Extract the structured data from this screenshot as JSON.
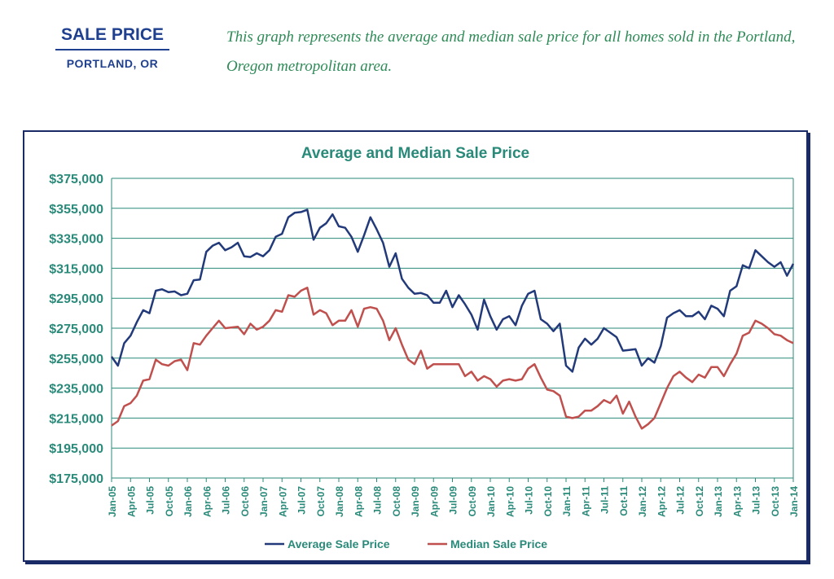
{
  "header": {
    "title": "SALE PRICE",
    "subtitle": "PORTLAND, OR",
    "intro": "This graph represents the average and median sale price for all homes sold in the Portland, Oregon metropolitan area."
  },
  "colors": {
    "heading": "#1f3f8f",
    "intro": "#2e8b57",
    "title": "#2a8a7a",
    "axis_text": "#2a8a7a",
    "grid": "#2a8a7a",
    "average": "#223a7a",
    "median": "#c0504d"
  },
  "chart_data": {
    "type": "line",
    "title": "Average and Median Sale Price",
    "xlabel": "",
    "ylabel": "",
    "ylim": [
      175000,
      375000
    ],
    "yticks": [
      "$375,000",
      "$355,000",
      "$335,000",
      "$315,000",
      "$295,000",
      "$275,000",
      "$255,000",
      "$235,000",
      "$215,000",
      "$195,000",
      "$175,000"
    ],
    "ytick_values": [
      375000,
      355000,
      335000,
      315000,
      295000,
      275000,
      255000,
      235000,
      215000,
      195000,
      175000
    ],
    "xticks": [
      "Jan-05",
      "Apr-05",
      "Jul-05",
      "Oct-05",
      "Jan-06",
      "Apr-06",
      "Jul-06",
      "Oct-06",
      "Jan-07",
      "Apr-07",
      "Jul-07",
      "Oct-07",
      "Jan-08",
      "Apr-08",
      "Jul-08",
      "Oct-08",
      "Jan-09",
      "Apr-09",
      "Jul-09",
      "Oct-09",
      "Jan-10",
      "Apr-10",
      "Jul-10",
      "Oct-10",
      "Jan-11",
      "Apr-11",
      "Jul-11",
      "Oct-11",
      "Jan-12",
      "Apr-12",
      "Jul-12",
      "Oct-12",
      "Jan-13",
      "Apr-13",
      "Jul-13",
      "Oct-13",
      "Jan-14"
    ],
    "x_start": "Jan-05",
    "x_interval": "monthly",
    "grid": "horizontal",
    "legend_position": "bottom",
    "series": [
      {
        "name": "Average Sale Price",
        "color": "#223a7a",
        "values": [
          256000,
          250000,
          265000,
          270000,
          279000,
          287000,
          285000,
          300000,
          301000,
          299000,
          299500,
          297000,
          298000,
          307000,
          307500,
          326000,
          330000,
          332000,
          327000,
          329000,
          332000,
          323000,
          322500,
          325000,
          323000,
          327000,
          336000,
          338000,
          349000,
          352000,
          352500,
          354000,
          334000,
          342000,
          345000,
          351000,
          343000,
          342000,
          336000,
          326000,
          337000,
          349000,
          341000,
          332000,
          316000,
          325000,
          308000,
          302000,
          298000,
          298500,
          297000,
          292000,
          292000,
          300000,
          289000,
          297000,
          291000,
          284000,
          274000,
          294000,
          283000,
          274000,
          281000,
          283000,
          277000,
          290000,
          298000,
          300000,
          281000,
          278000,
          273000,
          278000,
          250000,
          246000,
          262000,
          268000,
          264000,
          268000,
          275000,
          272000,
          269000,
          260000,
          260500,
          261000,
          250000,
          255000,
          252000,
          263000,
          282000,
          285000,
          287000,
          283000,
          283000,
          286000,
          281000,
          290000,
          288000,
          283000,
          300000,
          303000,
          317000,
          315000,
          327000,
          323000,
          319000,
          316000,
          319000,
          310000,
          318000
        ]
      },
      {
        "name": "Median Sale Price",
        "color": "#c0504d",
        "values": [
          210000,
          213000,
          223000,
          225000,
          230000,
          240000,
          241000,
          254000,
          251000,
          250000,
          253000,
          254000,
          247000,
          265000,
          264000,
          270000,
          275000,
          280000,
          275000,
          275500,
          276000,
          271000,
          278000,
          274000,
          276000,
          280000,
          287000,
          286000,
          297000,
          296000,
          300000,
          302000,
          284000,
          287000,
          285000,
          277000,
          280000,
          280000,
          287000,
          276000,
          288000,
          289000,
          288000,
          280000,
          267000,
          275000,
          264000,
          254000,
          251000,
          260000,
          248000,
          251000,
          251000,
          251000,
          251000,
          251000,
          243000,
          246000,
          240000,
          243000,
          241000,
          236000,
          240000,
          241000,
          240000,
          241000,
          248000,
          251000,
          242000,
          234000,
          233000,
          230000,
          216000,
          215000,
          216000,
          220000,
          220000,
          223000,
          227000,
          225000,
          230000,
          218000,
          226000,
          216000,
          208000,
          211000,
          215000,
          225000,
          235000,
          243000,
          246000,
          242000,
          239000,
          244000,
          242000,
          249000,
          249000,
          243000,
          251000,
          258000,
          270000,
          272000,
          280000,
          278000,
          275000,
          271000,
          270000,
          267000,
          265000
        ]
      }
    ]
  }
}
